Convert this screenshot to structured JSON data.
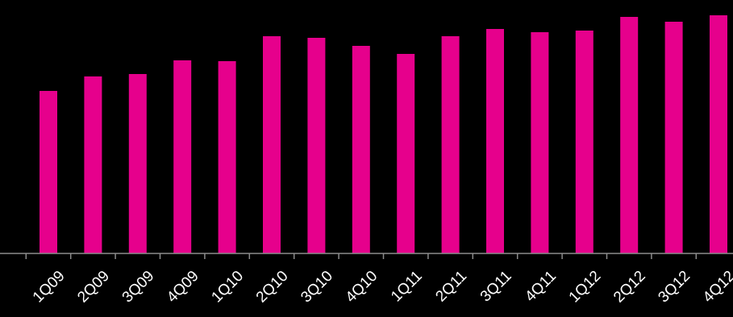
{
  "colors": {
    "background": "#000000",
    "bar": "#E6008C",
    "axis": "#8C8C8C",
    "label": "#FFFFFF"
  },
  "chart_data": {
    "type": "bar",
    "categories": [
      "1Q09",
      "2Q09",
      "3Q09",
      "4Q09",
      "1Q10",
      "2Q10",
      "3Q10",
      "4Q10",
      "1Q11",
      "2Q11",
      "3Q11",
      "4Q11",
      "1Q12",
      "2Q12",
      "3Q12",
      "4Q12"
    ],
    "series": [
      {
        "values": [
          202,
          220,
          223,
          240,
          239,
          270,
          268,
          258,
          248,
          270,
          279,
          275,
          277,
          294,
          288,
          296
        ]
      }
    ],
    "ylim": [
      0,
      300
    ],
    "title": "",
    "xlabel": "",
    "ylabel": "",
    "grid": false,
    "legend": "none"
  }
}
